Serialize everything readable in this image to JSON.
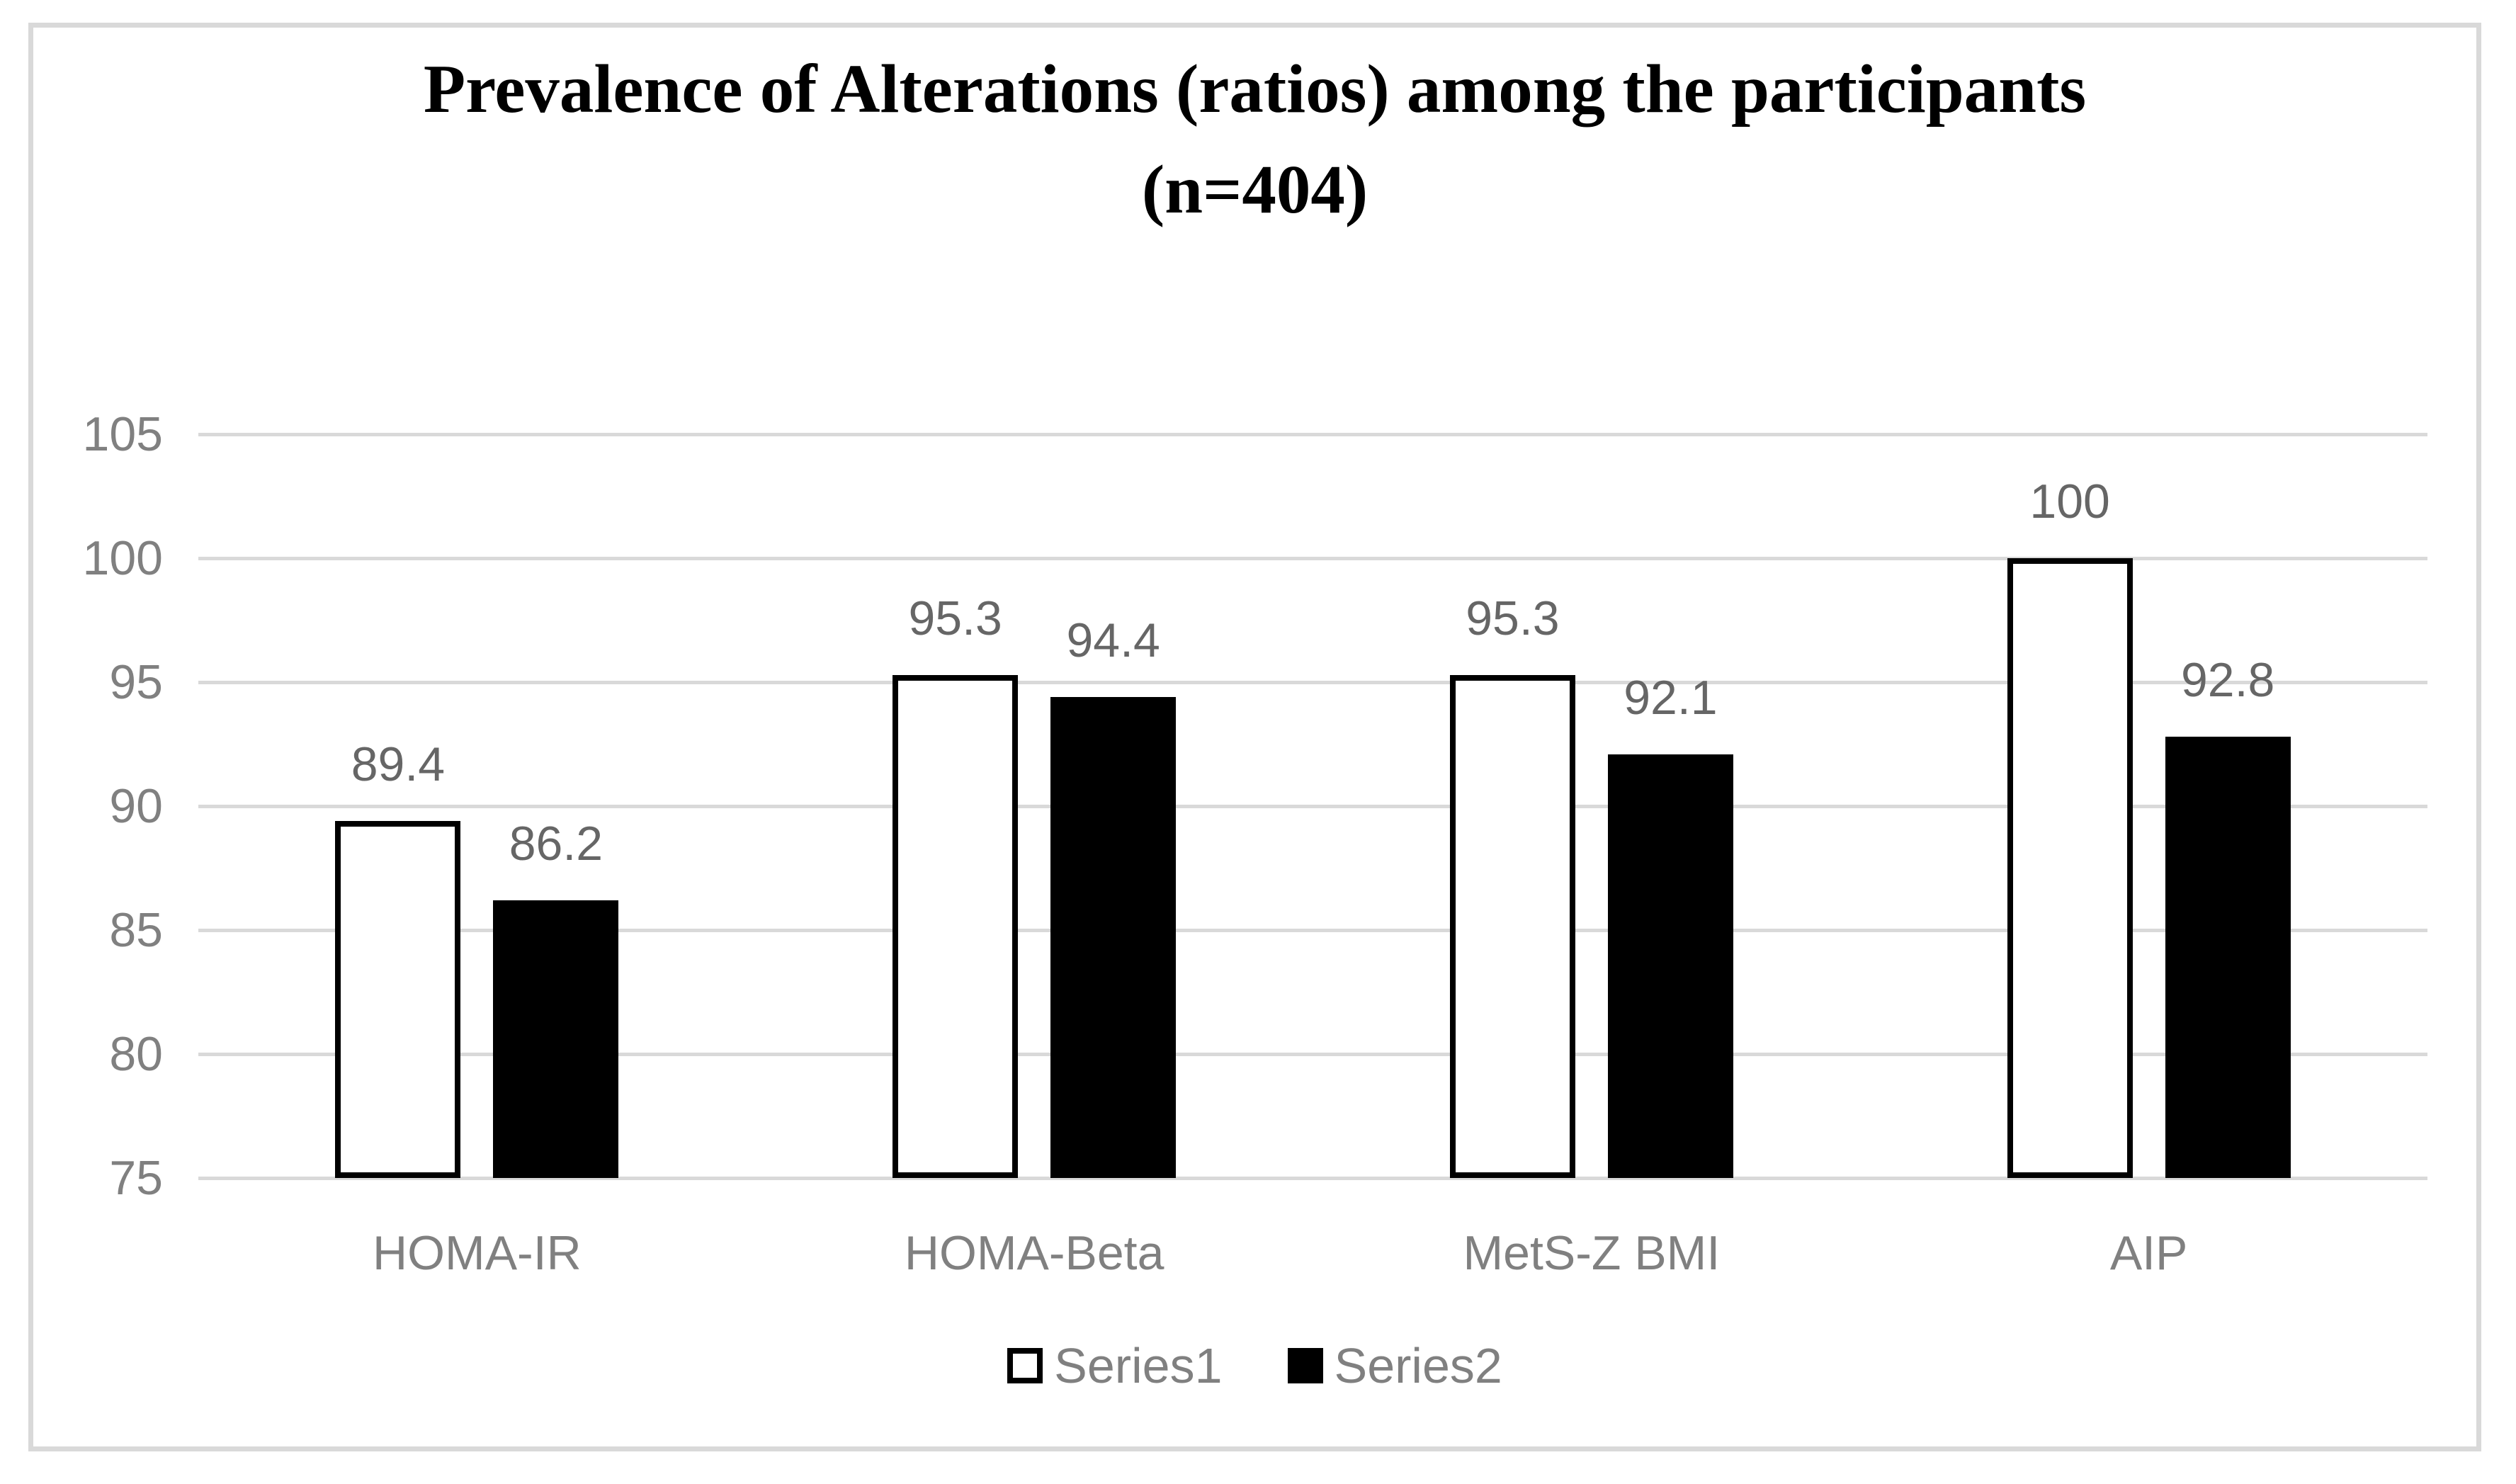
{
  "chart": {
    "title_line1": "Prevalence of Alterations (ratios) among the participants",
    "title_line2": "(n=404)"
  },
  "chart_data": {
    "type": "bar",
    "title": "Prevalence of Alterations (ratios) among the participants (n=404)",
    "categories": [
      "HOMA-IR",
      "HOMA-Beta",
      "MetS-Z BMI",
      "AIP"
    ],
    "series": [
      {
        "name": "Series1",
        "values": [
          89.4,
          95.3,
          95.3,
          100
        ]
      },
      {
        "name": "Series2",
        "values": [
          86.2,
          94.4,
          92.1,
          92.8
        ]
      }
    ],
    "data_labels": [
      [
        "89.4",
        "95.3",
        "95.3",
        "100"
      ],
      [
        "86.2",
        "94.4",
        "92.1",
        "92.8"
      ]
    ],
    "xlabel": "",
    "ylabel": "",
    "ylim": [
      75,
      105
    ],
    "yticks": [
      75,
      80,
      85,
      90,
      95,
      100,
      105
    ],
    "grid": true,
    "legend_position": "bottom",
    "legend_entries": [
      "Series1",
      "Series2"
    ]
  },
  "colors": {
    "series1_fill": "#ffffff",
    "series1_border": "#000000",
    "series2_fill": "#000000",
    "gridline": "#d9d9d9",
    "frame_border": "#d9d9d9",
    "axis_text": "#808080",
    "data_label_text": "#666666",
    "title_text": "#000000"
  }
}
